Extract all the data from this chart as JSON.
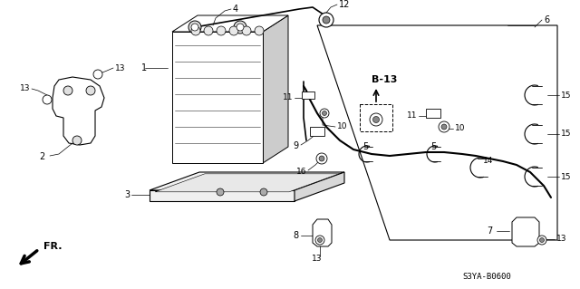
{
  "bg_color": "#ffffff",
  "fig_width": 6.4,
  "fig_height": 3.19,
  "dpi": 100,
  "part_code": "S3YA-B0600",
  "ref_label": "B-13"
}
